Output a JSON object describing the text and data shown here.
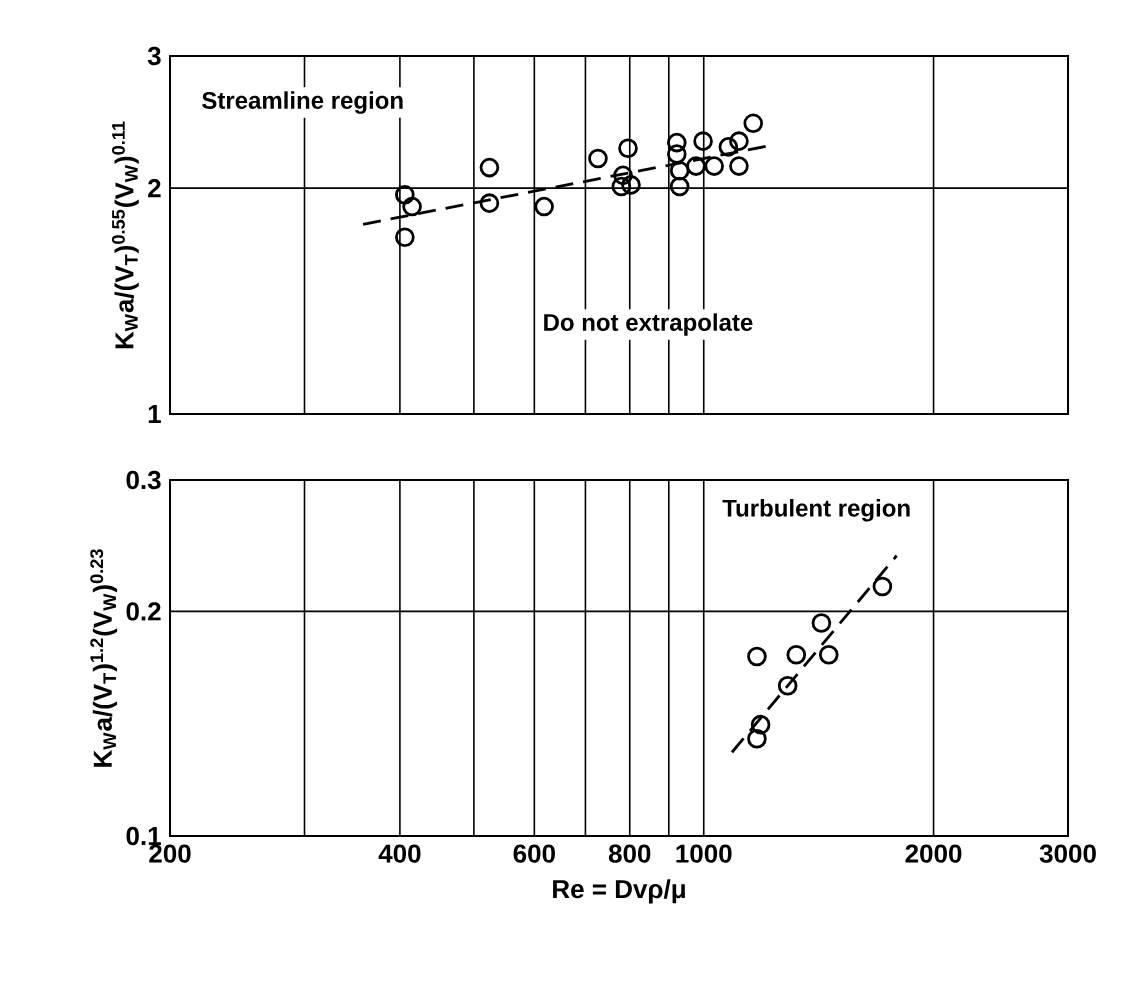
{
  "chart_data": [
    {
      "type": "scatter",
      "ylabel": "K$_{W}$a/(V$_{T}$)$^{0.55}$(V$_{W}$)$^{0.11}$",
      "log": "xy",
      "grid": true,
      "tick_labels": "y",
      "xlim": [
        200,
        3000
      ],
      "xticks": [
        200,
        {
          "value": 300,
          "label": null
        },
        400,
        {
          "value": 500,
          "label": null
        },
        600,
        {
          "value": 700,
          "label": null
        },
        800,
        {
          "value": 900,
          "label": null
        },
        1000,
        2000,
        3000
      ],
      "ylim": [
        1,
        3
      ],
      "yticks": [
        1,
        2,
        3
      ],
      "annotations": [
        "Streamline region",
        "Do not extrapolate"
      ],
      "series": [
        {
          "type": "scatter",
          "marker": "circle",
          "color": "#000000",
          "x": [
            406,
            415,
            406,
            524,
            524,
            618,
            727,
            796,
            784,
            780,
            803,
            922,
            922,
            930,
            930,
            998,
            977,
            1032,
            1077,
            1112,
            1112,
            1161
          ],
          "values": [
            1.96,
            1.89,
            1.72,
            2.13,
            1.91,
            1.89,
            2.19,
            2.26,
            2.08,
            2.01,
            2.02,
            2.3,
            2.22,
            2.11,
            2.01,
            2.31,
            2.14,
            2.14,
            2.27,
            2.31,
            2.14,
            2.44
          ]
        },
        {
          "type": "line",
          "line_style": "dashed",
          "color": "#000000",
          "x": [
            358,
            1225
          ],
          "values": [
            1.79,
            2.28
          ]
        }
      ]
    },
    {
      "type": "scatter",
      "xlabel": "Re = Dvρ/μ",
      "ylabel": "K$_{W}$a/(V$_{T}$)$^{1.2}$(V$_{W}$)$^{0.23}$",
      "log": "xy",
      "grid": true,
      "xlim": [
        200,
        3000
      ],
      "xticks": [
        200,
        {
          "value": 300,
          "label": null
        },
        400,
        {
          "value": 500,
          "label": null
        },
        600,
        {
          "value": 700,
          "label": null
        },
        800,
        {
          "value": 900,
          "label": null
        },
        1000,
        2000,
        3000
      ],
      "ylim": [
        0.1,
        0.3
      ],
      "yticks": [
        0.1,
        0.2,
        0.3
      ],
      "annotations": [
        "Turbulent region"
      ],
      "series": [
        {
          "type": "scatter",
          "marker": "circle",
          "color": "#000000",
          "x": [
            1174,
            1322,
            1458,
            1426,
            1288,
            1187,
            1174,
            1714
          ],
          "values": [
            0.174,
            0.175,
            0.175,
            0.193,
            0.159,
            0.141,
            0.135,
            0.216
          ]
        },
        {
          "type": "line",
          "line_style": "dashed",
          "color": "#000000",
          "x": [
            1089,
            1789
          ],
          "values": [
            0.1295,
            0.2375
          ]
        }
      ]
    }
  ]
}
